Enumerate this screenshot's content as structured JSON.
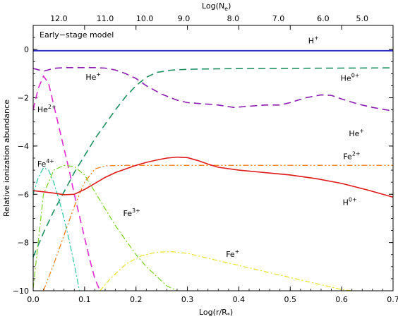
{
  "chart_data": {
    "type": "line",
    "annotation": "Early−stage model",
    "xlabel": "Log(r/R",
    "xlabel_sub": "*",
    "xlabel_close": ")",
    "ylabel": "Relative ionization abundance",
    "top_label": "Log(N",
    "top_label_sub": "e",
    "top_label_close": ")",
    "xlim": [
      0.0,
      0.7
    ],
    "ylim": [
      -10,
      1
    ],
    "x_ticks": [
      "0.0",
      "0.1",
      "0.2",
      "0.3",
      "0.4",
      "0.5",
      "0.6",
      "0.7"
    ],
    "y_ticks": [
      "0",
      "−2",
      "−4",
      "−6",
      "−8",
      "−10"
    ],
    "top_ticks": [
      {
        "label": "12.0",
        "x": 0.05
      },
      {
        "label": "11.0",
        "x": 0.14
      },
      {
        "label": "10.0",
        "x": 0.217
      },
      {
        "label": "9.0",
        "x": 0.293
      },
      {
        "label": "8.0",
        "x": 0.389
      },
      {
        "label": "7.0",
        "x": 0.477
      },
      {
        "label": "6.0",
        "x": 0.564
      },
      {
        "label": "5.0",
        "x": 0.64
      }
    ],
    "series": [
      {
        "label": "H",
        "label_sup": "+",
        "color": "#2c2cc8",
        "dash": "",
        "width": 2.0,
        "label_pos": [
          0.535,
          0.25
        ],
        "x": [
          0.0,
          0.1,
          0.2,
          0.3,
          0.4,
          0.5,
          0.6,
          0.7
        ],
        "y": [
          -0.05,
          -0.05,
          -0.05,
          -0.05,
          -0.05,
          -0.05,
          -0.05,
          -0.05
        ]
      },
      {
        "label": "He",
        "label_sup": "0+",
        "color": "#1e9060",
        "dash": "10,6",
        "width": 1.6,
        "label_pos": [
          0.598,
          -1.3
        ],
        "x": [
          0.0,
          0.02,
          0.04,
          0.06,
          0.08,
          0.1,
          0.12,
          0.14,
          0.16,
          0.18,
          0.2,
          0.22,
          0.24,
          0.27,
          0.3,
          0.35,
          0.4,
          0.5,
          0.6,
          0.7
        ],
        "y": [
          -8.6,
          -7.6,
          -6.7,
          -5.9,
          -5.1,
          -4.4,
          -3.7,
          -3.1,
          -2.5,
          -1.95,
          -1.5,
          -1.15,
          -0.95,
          -0.85,
          -0.82,
          -0.8,
          -0.79,
          -0.78,
          -0.77,
          -0.76
        ]
      },
      {
        "label": "He",
        "label_sup": "+",
        "color": "#8a1ab0",
        "dash": "10,6",
        "width": 1.6,
        "label_pos": [
          0.102,
          -1.25
        ],
        "label2": "He",
        "label2_sup": "+",
        "label2_pos": [
          0.614,
          -3.6
        ],
        "x": [
          0.0,
          0.02,
          0.04,
          0.06,
          0.08,
          0.1,
          0.12,
          0.14,
          0.16,
          0.18,
          0.2,
          0.22,
          0.25,
          0.28,
          0.3,
          0.33,
          0.36,
          0.39,
          0.42,
          0.45,
          0.48,
          0.5,
          0.53,
          0.56,
          0.58,
          0.6,
          0.63,
          0.66,
          0.7
        ],
        "y": [
          -0.78,
          -0.9,
          -0.78,
          -0.75,
          -0.75,
          -0.75,
          -0.75,
          -0.77,
          -0.85,
          -1.0,
          -1.2,
          -1.5,
          -1.85,
          -2.1,
          -2.2,
          -2.25,
          -2.3,
          -2.4,
          -2.35,
          -2.3,
          -2.3,
          -2.2,
          -2.0,
          -1.88,
          -1.9,
          -2.05,
          -2.25,
          -2.4,
          -2.55
        ]
      },
      {
        "label": "He",
        "label_sup": "2+",
        "color": "#e02ad0",
        "dash": "10,6",
        "width": 1.6,
        "label_pos": [
          0.008,
          -2.6
        ],
        "x": [
          0.0,
          0.01,
          0.02,
          0.03,
          0.04,
          0.05,
          0.06,
          0.07,
          0.08,
          0.09,
          0.1,
          0.11,
          0.12,
          0.13
        ],
        "y": [
          -2.5,
          -1.6,
          -1.1,
          -1.4,
          -2.3,
          -3.2,
          -4.1,
          -5.0,
          -6.0,
          -6.9,
          -7.8,
          -8.7,
          -9.5,
          -10.0
        ]
      },
      {
        "label": "Fe",
        "label_sup": "4+",
        "color": "#20c8a0",
        "dash": "8,3,2,3",
        "width": 1.2,
        "label_pos": [
          0.008,
          -4.85
        ],
        "x": [
          0.0,
          0.01,
          0.02,
          0.03,
          0.04,
          0.05,
          0.06,
          0.07,
          0.08,
          0.09
        ],
        "y": [
          -6.0,
          -5.3,
          -4.9,
          -5.0,
          -5.5,
          -6.2,
          -7.0,
          -7.9,
          -8.9,
          -10.0
        ]
      },
      {
        "label": "Fe",
        "label_sup": "3+",
        "color": "#7ad020",
        "dash": "8,3,2,3",
        "width": 1.2,
        "label_pos": [
          0.175,
          -6.9
        ],
        "x": [
          0.0,
          0.02,
          0.04,
          0.06,
          0.08,
          0.1,
          0.12,
          0.14,
          0.16,
          0.18,
          0.2,
          0.22,
          0.24,
          0.26,
          0.28
        ],
        "y": [
          -9.9,
          -6.0,
          -5.0,
          -4.8,
          -4.85,
          -5.2,
          -5.9,
          -6.6,
          -7.3,
          -7.9,
          -8.5,
          -9.0,
          -9.4,
          -9.8,
          -10.0
        ]
      },
      {
        "label": "Fe",
        "label_sup": "2+",
        "color": "#f07a10",
        "dash": "8,3,2,3,2,3",
        "width": 1.2,
        "label_pos": [
          0.603,
          -4.55
        ],
        "x": [
          0.02,
          0.04,
          0.06,
          0.08,
          0.1,
          0.12,
          0.14,
          0.18,
          0.25,
          0.3,
          0.4,
          0.5,
          0.6,
          0.7
        ],
        "y": [
          -10.0,
          -8.9,
          -7.7,
          -6.5,
          -5.5,
          -4.95,
          -4.82,
          -4.8,
          -4.8,
          -4.8,
          -4.8,
          -4.8,
          -4.8,
          -4.8
        ]
      },
      {
        "label": "Fe",
        "label_sup": "+",
        "color": "#e8e020",
        "dash": "7,3,2,3",
        "width": 1.2,
        "label_pos": [
          0.375,
          -8.6
        ],
        "x": [
          0.13,
          0.15,
          0.18,
          0.21,
          0.24,
          0.27,
          0.3,
          0.35,
          0.4,
          0.45,
          0.5,
          0.55,
          0.6,
          0.62
        ],
        "y": [
          -10.0,
          -9.5,
          -8.9,
          -8.55,
          -8.4,
          -8.38,
          -8.45,
          -8.7,
          -8.95,
          -9.2,
          -9.45,
          -9.7,
          -9.95,
          -10.0
        ]
      },
      {
        "label": "H",
        "label_sup": "0+",
        "color": "#e01818",
        "dash": "",
        "width": 1.6,
        "label_pos": [
          0.602,
          -6.45
        ],
        "x": [
          0.0,
          0.02,
          0.04,
          0.06,
          0.08,
          0.1,
          0.12,
          0.14,
          0.16,
          0.18,
          0.2,
          0.22,
          0.24,
          0.26,
          0.28,
          0.3,
          0.32,
          0.34,
          0.36,
          0.4,
          0.45,
          0.5,
          0.55,
          0.6,
          0.65,
          0.7
        ],
        "y": [
          -5.85,
          -5.9,
          -5.95,
          -6.02,
          -6.0,
          -5.8,
          -5.55,
          -5.3,
          -5.1,
          -4.95,
          -4.8,
          -4.68,
          -4.58,
          -4.5,
          -4.46,
          -4.48,
          -4.6,
          -4.75,
          -4.88,
          -5.0,
          -5.1,
          -5.2,
          -5.35,
          -5.55,
          -5.82,
          -6.12
        ]
      }
    ]
  }
}
